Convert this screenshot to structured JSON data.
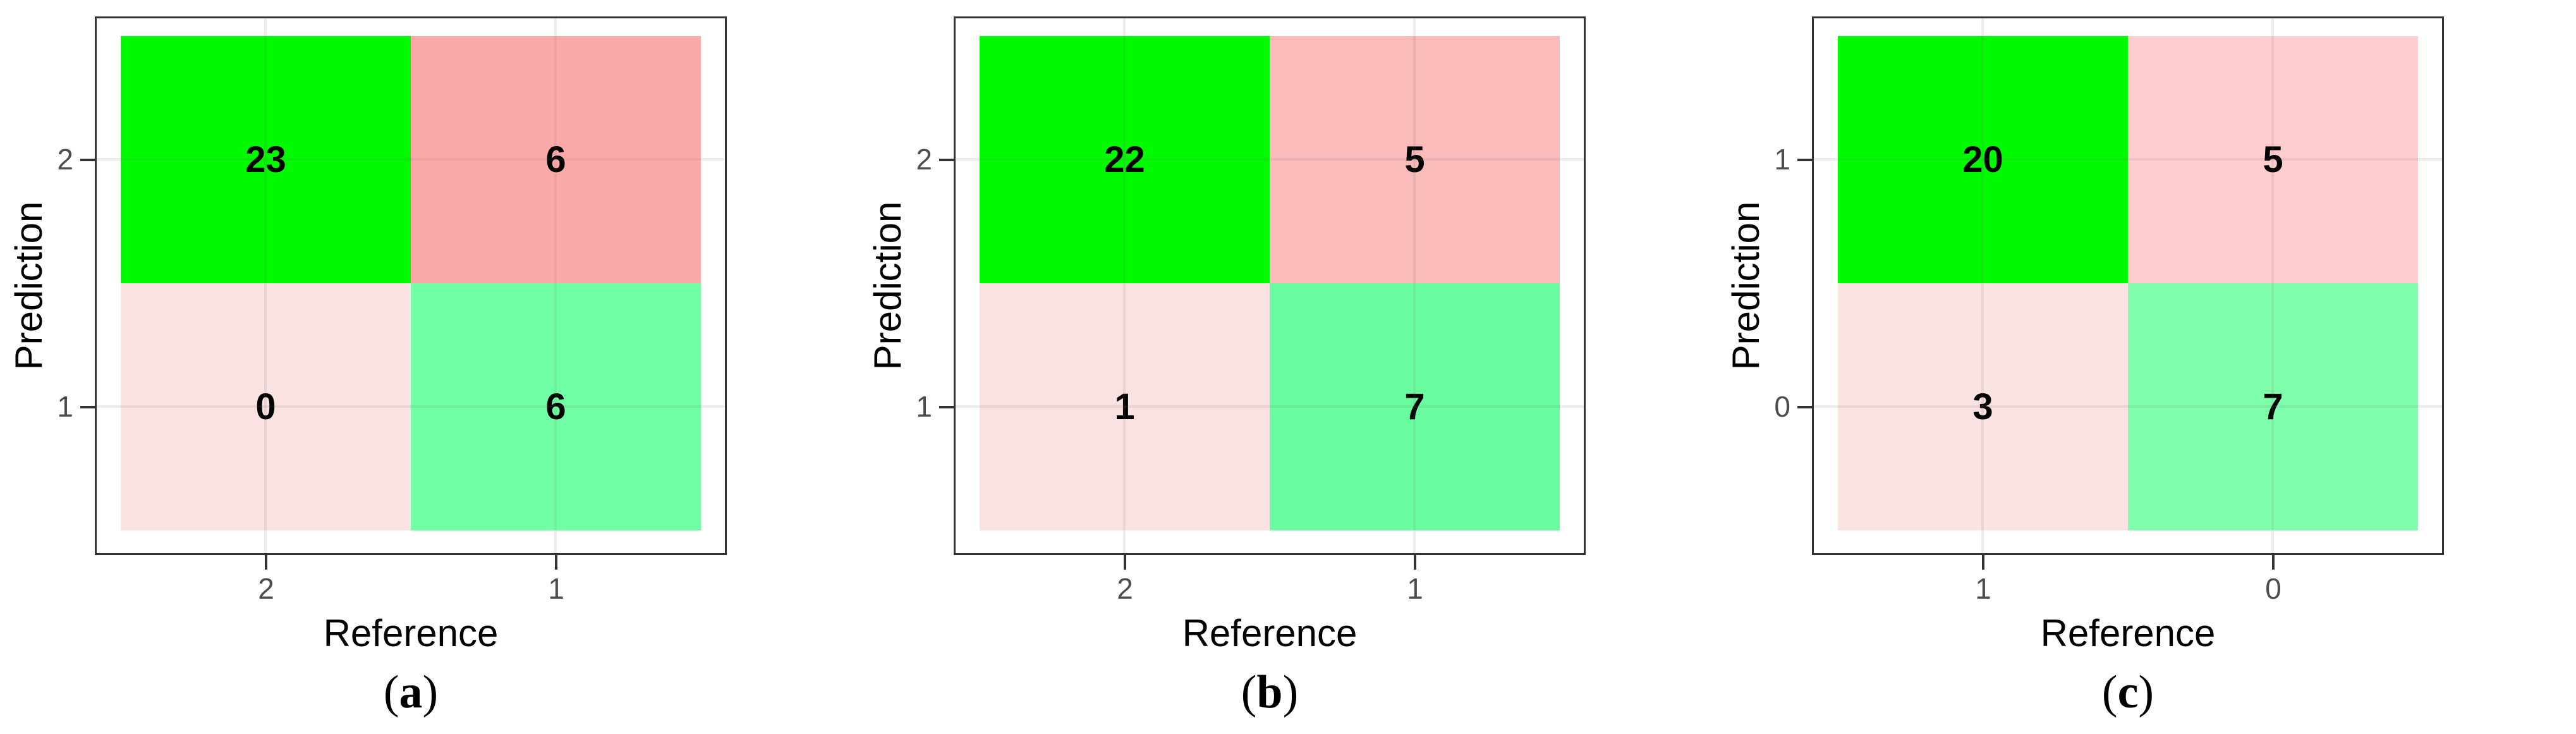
{
  "figure": {
    "x_axis_label": "Reference",
    "y_axis_label": "Prediction",
    "border_color": "#333333",
    "tick_label_color": "#4d4d4d",
    "caption_open": "(",
    "caption_close": ")",
    "panels": [
      {
        "caption_letter": "a",
        "y_ticks": [
          "2",
          "1"
        ],
        "x_ticks": [
          "2",
          "1"
        ],
        "cells": [
          {
            "value": "23",
            "color": "#00FA00"
          },
          {
            "value": "6",
            "color": "#FCA9A9"
          },
          {
            "value": "0",
            "color": "#FBE3E3"
          },
          {
            "value": "6",
            "color": "#71FFA5"
          }
        ]
      },
      {
        "caption_letter": "b",
        "y_ticks": [
          "2",
          "1"
        ],
        "x_ticks": [
          "2",
          "1"
        ],
        "cells": [
          {
            "value": "22",
            "color": "#00FA00"
          },
          {
            "value": "5",
            "color": "#FBBBBB"
          },
          {
            "value": "1",
            "color": "#FBE2E2"
          },
          {
            "value": "7",
            "color": "#69FD9F"
          }
        ]
      },
      {
        "caption_letter": "c",
        "y_ticks": [
          "1",
          "0"
        ],
        "x_ticks": [
          "1",
          "0"
        ],
        "cells": [
          {
            "value": "20",
            "color": "#00FA00"
          },
          {
            "value": "5",
            "color": "#FECDCD"
          },
          {
            "value": "3",
            "color": "#FBE3E3"
          },
          {
            "value": "7",
            "color": "#7FFFAC"
          }
        ]
      }
    ]
  },
  "chart_data": [
    {
      "type": "heatmap",
      "title": "(a)",
      "xlabel": "Reference",
      "ylabel": "Prediction",
      "x_categories": [
        "2",
        "1"
      ],
      "y_categories": [
        "2",
        "1"
      ],
      "rows_top_to_bottom": [
        [
          23,
          6
        ],
        [
          0,
          6
        ]
      ],
      "legend": "none",
      "grid": true,
      "color_rule": "diagonal cells green, off-diagonal cells red/pink, intensity scaled by count"
    },
    {
      "type": "heatmap",
      "title": "(b)",
      "xlabel": "Reference",
      "ylabel": "Prediction",
      "x_categories": [
        "2",
        "1"
      ],
      "y_categories": [
        "2",
        "1"
      ],
      "rows_top_to_bottom": [
        [
          22,
          5
        ],
        [
          1,
          7
        ]
      ],
      "legend": "none",
      "grid": true,
      "color_rule": "diagonal cells green, off-diagonal cells red/pink, intensity scaled by count"
    },
    {
      "type": "heatmap",
      "title": "(c)",
      "xlabel": "Reference",
      "ylabel": "Prediction",
      "x_categories": [
        "1",
        "0"
      ],
      "y_categories": [
        "1",
        "0"
      ],
      "rows_top_to_bottom": [
        [
          20,
          5
        ],
        [
          3,
          7
        ]
      ],
      "legend": "none",
      "grid": true,
      "color_rule": "diagonal cells green, off-diagonal cells red/pink, intensity scaled by count"
    }
  ]
}
